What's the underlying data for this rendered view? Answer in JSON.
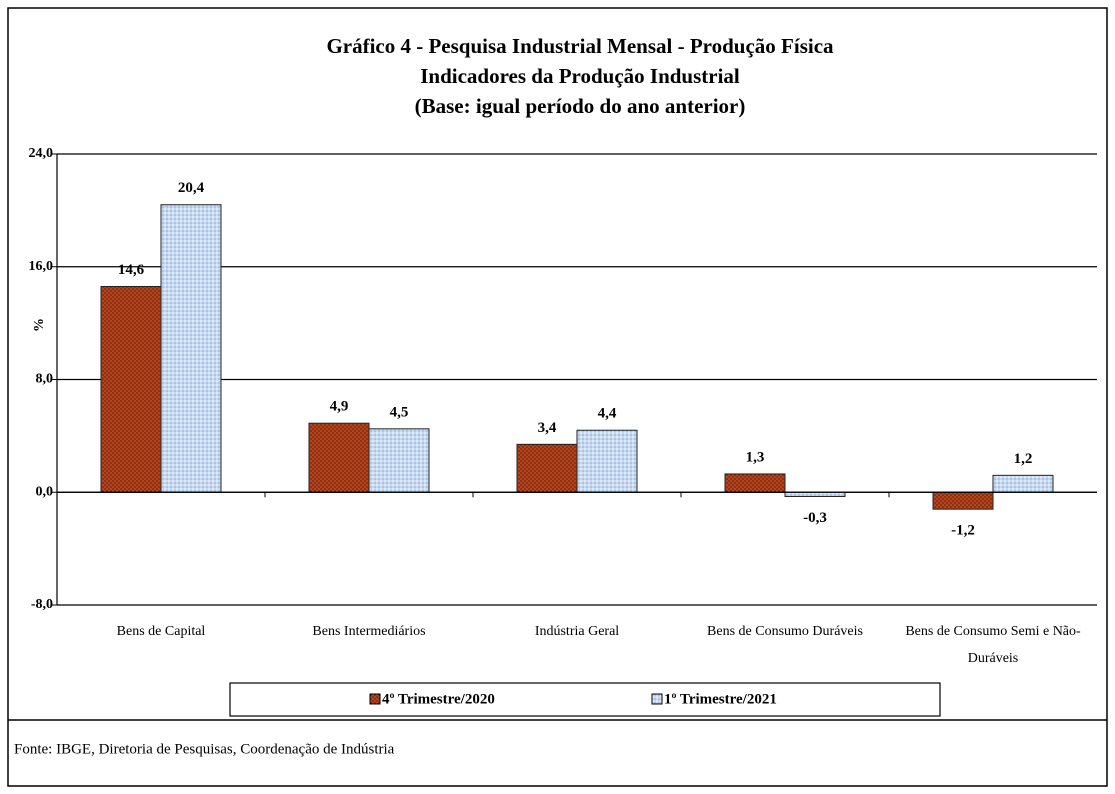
{
  "chart_data": {
    "type": "bar",
    "title_lines": [
      "Gráfico 4 - Pesquisa Industrial Mensal - Produção Física",
      "Indicadores da Produção Industrial",
      "(Base: igual período do ano anterior)"
    ],
    "ylabel": "%",
    "categories": [
      "Bens de Capital",
      "Bens Intermediários",
      "Indústria Geral",
      "Bens de Consumo Duráveis",
      "Bens de Consumo Semi e Não-Duráveis"
    ],
    "series": [
      {
        "name": "4º Trimestre/2020",
        "color": "#b5441d",
        "values": [
          14.6,
          4.9,
          3.4,
          1.3,
          -1.2
        ],
        "value_labels": [
          "14,6",
          "4,9",
          "3,4",
          "1,3",
          "-1,2"
        ]
      },
      {
        "name": "1º Trimestre/2021",
        "color": "#c6d9f1",
        "values": [
          20.4,
          4.5,
          4.4,
          -0.3,
          1.2
        ],
        "value_labels": [
          "20,4",
          "4,5",
          "4,4",
          "-0,3",
          "1,2"
        ]
      }
    ],
    "ylim": [
      -8,
      24
    ],
    "yticks": [
      {
        "value": -8,
        "label": "-8,0"
      },
      {
        "value": 0,
        "label": "0,0"
      },
      {
        "value": 8,
        "label": "8,0"
      },
      {
        "value": 16,
        "label": "16,0"
      },
      {
        "value": 24,
        "label": "24,0"
      }
    ],
    "grid": true,
    "legend": "bottom",
    "source": "Fonte: IBGE, Diretoria de Pesquisas, Coordenação de Indústria"
  }
}
